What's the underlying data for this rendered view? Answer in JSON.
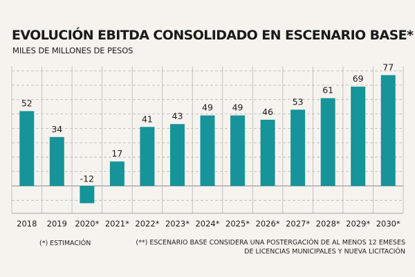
{
  "chart_data": {
    "type": "bar",
    "title": "EVOLUCIÓN EBITDA CONSOLIDADO EN ESCENARIO BASE*",
    "subtitle": "MILES DE MILLONES DE PESOS",
    "xlabel": "",
    "ylabel": "",
    "categories": [
      "2018",
      "2019",
      "2020*",
      "2021*",
      "2022*",
      "2023*",
      "2024*",
      "2025*",
      "2026*",
      "2027*",
      "2028*",
      "2029*",
      "2030*"
    ],
    "values": [
      52,
      34,
      -12,
      17,
      41,
      43,
      49,
      49,
      46,
      53,
      61,
      69,
      77
    ],
    "data_labels": [
      "52",
      "34",
      "-12",
      "17",
      "41",
      "43",
      "49",
      "49",
      "46",
      "53",
      "61",
      "69",
      "77"
    ],
    "ylim": [
      -19,
      83
    ],
    "grid": true,
    "bar_color": "#17939a"
  },
  "footnotes": {
    "left": "(*) ESTIMACIÓN",
    "right_line1": "(**) ESCENARIO BASE CONSIDERA UNA POSTERGACIÓN DE AL MENOS 12 EMESES",
    "right_line2": "DE LICENCIAS MUNICIPALES Y NUEVA LICITACIÓN"
  },
  "colors": {
    "background": "#f6f3ee",
    "bar": "#17939a",
    "grid": "#b5b5b5",
    "text": "#1a1a1a"
  }
}
